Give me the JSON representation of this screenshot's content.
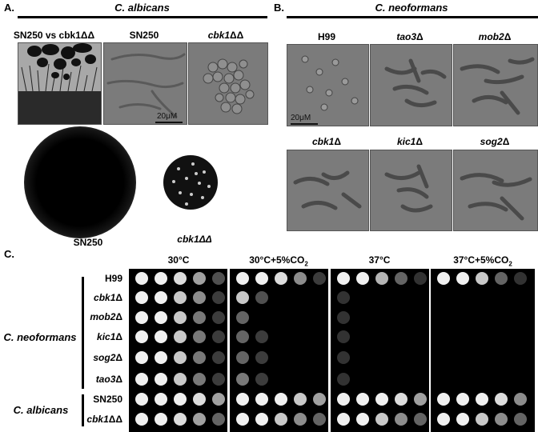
{
  "panelA": {
    "label": "A.",
    "species": "C. albicans",
    "images": [
      {
        "title": "SN250 vs cbk1ΔΔ"
      },
      {
        "title": "SN250",
        "scale": "20μM"
      },
      {
        "title": "cbk1ΔΔ",
        "title_italic_part": "cbk1",
        "title_rest": "ΔΔ"
      }
    ],
    "colony_labels": {
      "left": "SN250",
      "right": "cbk1ΔΔ"
    }
  },
  "panelB": {
    "label": "B.",
    "species": "C. neoformans",
    "images": [
      {
        "title_italic": "",
        "title_rest": "H99",
        "scale": "20μM"
      },
      {
        "title_italic": "tao3",
        "title_rest": "Δ"
      },
      {
        "title_italic": "mob2",
        "title_rest": "Δ"
      },
      {
        "title_italic": "cbk1",
        "title_rest": "Δ"
      },
      {
        "title_italic": "kic1",
        "title_rest": "Δ"
      },
      {
        "title_italic": "sog2",
        "title_rest": "Δ"
      }
    ]
  },
  "panelC": {
    "label": "C.",
    "conditions": [
      {
        "main": "30°C",
        "sub": ""
      },
      {
        "main": "30°C+5%CO",
        "sub": "2"
      },
      {
        "main": "37°C",
        "sub": ""
      },
      {
        "main": "37°C+5%CO",
        "sub": "2"
      }
    ],
    "groups": [
      {
        "name": "C. neoformans",
        "rows": [
          {
            "italic": "",
            "rest": "H99"
          },
          {
            "italic": "cbk1",
            "rest": "Δ"
          },
          {
            "italic": "mob2",
            "rest": "Δ"
          },
          {
            "italic": "kic1",
            "rest": "Δ"
          },
          {
            "italic": "sog2",
            "rest": "Δ"
          },
          {
            "italic": "tao3",
            "rest": "Δ"
          }
        ]
      },
      {
        "name": "C. albicans",
        "rows": [
          {
            "italic": "",
            "rest": "SN250"
          },
          {
            "italic": "cbk1",
            "rest": "ΔΔ"
          }
        ]
      }
    ]
  }
}
